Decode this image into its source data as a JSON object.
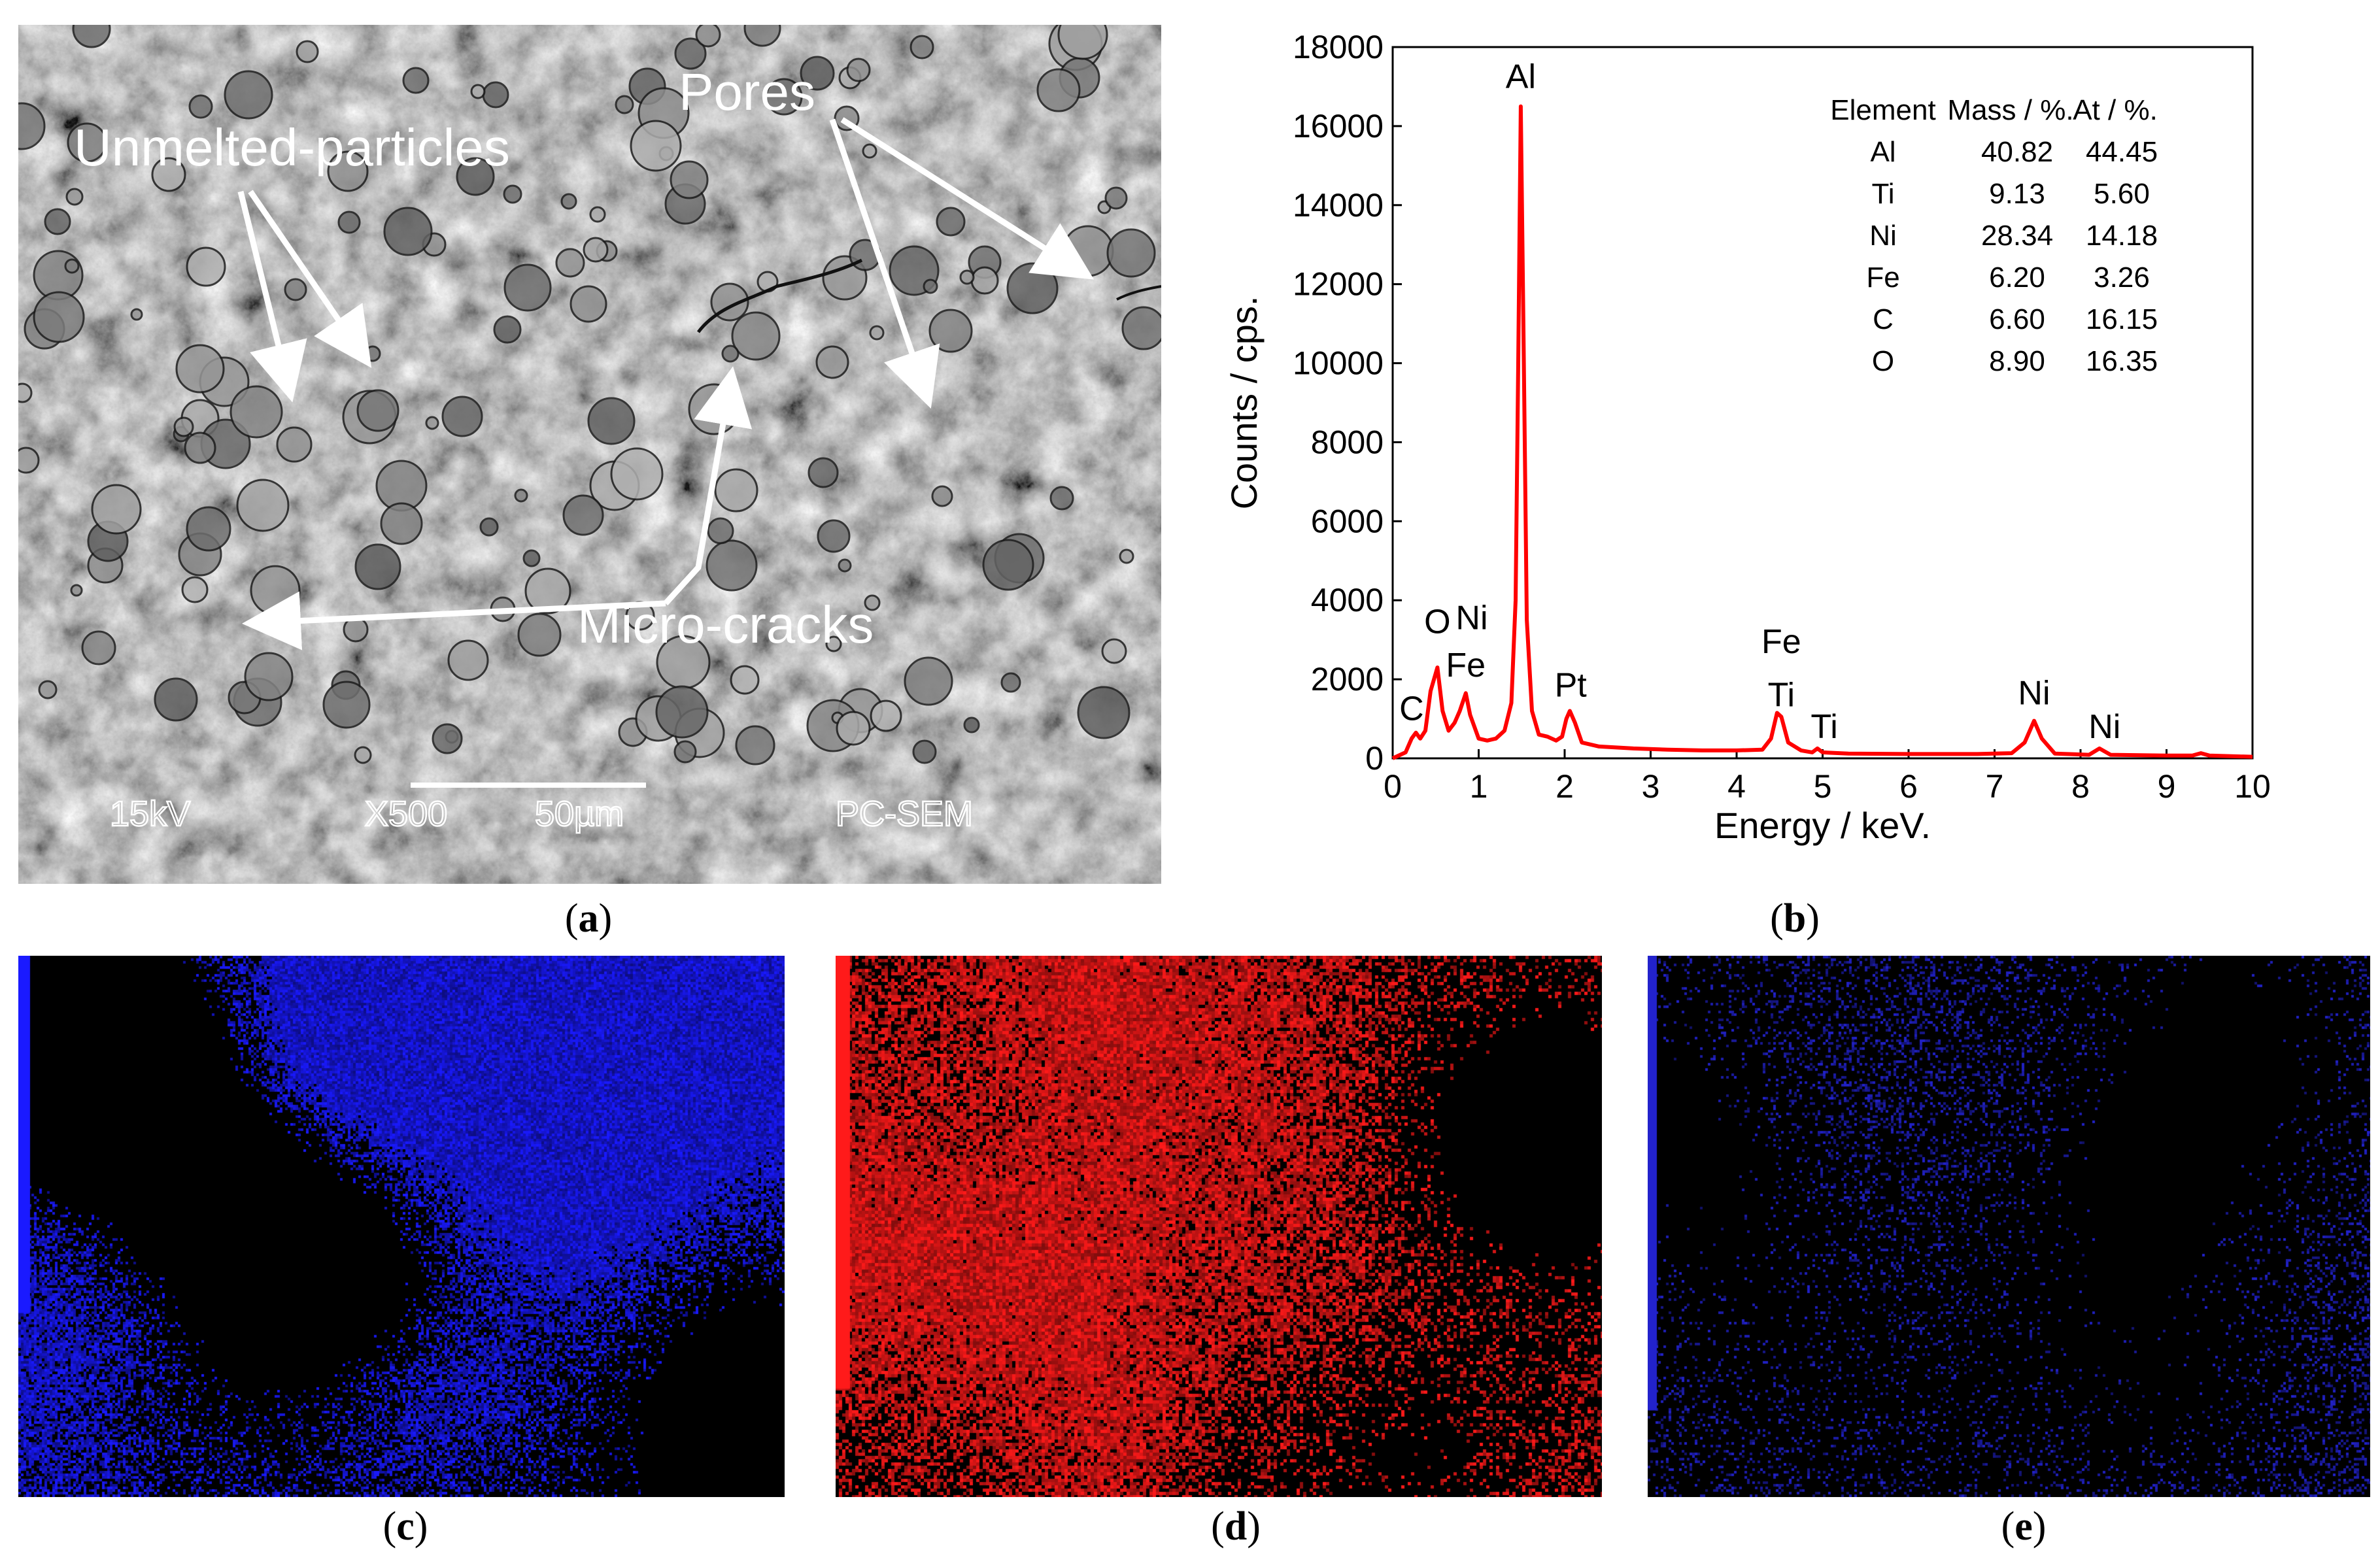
{
  "sem": {
    "annotations": {
      "unmelted": "Unmelted-particles",
      "pores": "Pores",
      "cracks": "Micro-cracks"
    },
    "footer": {
      "voltage": "15kV",
      "mag": "X500",
      "scale": "50µm",
      "instrument": "PC-SEM"
    }
  },
  "labels": {
    "a": "a",
    "b": "b",
    "c": "c",
    "d": "d",
    "e": "e"
  },
  "chart_data": {
    "type": "line",
    "xlabel": "Energy / keV.",
    "ylabel": "Counts / cps.",
    "xlim": [
      0,
      10
    ],
    "ylim": [
      0,
      18000
    ],
    "xticks": [
      0,
      1,
      2,
      3,
      4,
      5,
      6,
      7,
      8,
      9,
      10
    ],
    "yticks": [
      0,
      2000,
      4000,
      6000,
      8000,
      10000,
      12000,
      14000,
      16000,
      18000
    ],
    "grid": false,
    "series_color": "#ff0000",
    "baseline": [
      [
        0,
        0
      ],
      [
        0.15,
        150
      ],
      [
        0.22,
        500
      ],
      [
        0.27,
        650
      ],
      [
        0.32,
        500
      ],
      [
        0.38,
        700
      ],
      [
        0.44,
        1700
      ],
      [
        0.52,
        2300
      ],
      [
        0.58,
        1200
      ],
      [
        0.65,
        700
      ],
      [
        0.72,
        900
      ],
      [
        0.78,
        1200
      ],
      [
        0.85,
        1650
      ],
      [
        0.9,
        1100
      ],
      [
        1.0,
        500
      ],
      [
        1.1,
        450
      ],
      [
        1.2,
        500
      ],
      [
        1.3,
        700
      ],
      [
        1.38,
        1400
      ],
      [
        1.43,
        4000
      ],
      [
        1.46,
        10000
      ],
      [
        1.49,
        16500
      ],
      [
        1.52,
        11000
      ],
      [
        1.56,
        3500
      ],
      [
        1.62,
        1200
      ],
      [
        1.7,
        600
      ],
      [
        1.8,
        550
      ],
      [
        1.9,
        450
      ],
      [
        1.97,
        550
      ],
      [
        2.02,
        1000
      ],
      [
        2.06,
        1200
      ],
      [
        2.12,
        900
      ],
      [
        2.2,
        400
      ],
      [
        2.4,
        300
      ],
      [
        2.8,
        250
      ],
      [
        3.2,
        220
      ],
      [
        3.6,
        200
      ],
      [
        4.0,
        200
      ],
      [
        4.3,
        220
      ],
      [
        4.4,
        500
      ],
      [
        4.47,
        1150
      ],
      [
        4.52,
        1050
      ],
      [
        4.6,
        400
      ],
      [
        4.75,
        200
      ],
      [
        4.88,
        150
      ],
      [
        4.94,
        250
      ],
      [
        5.0,
        150
      ],
      [
        5.3,
        120
      ],
      [
        6.0,
        110
      ],
      [
        6.8,
        110
      ],
      [
        7.2,
        130
      ],
      [
        7.35,
        400
      ],
      [
        7.46,
        950
      ],
      [
        7.55,
        500
      ],
      [
        7.7,
        120
      ],
      [
        8.1,
        90
      ],
      [
        8.22,
        250
      ],
      [
        8.35,
        90
      ],
      [
        9.0,
        70
      ],
      [
        9.3,
        70
      ],
      [
        9.4,
        130
      ],
      [
        9.5,
        70
      ],
      [
        10.0,
        40
      ]
    ],
    "peak_labels": [
      {
        "text": "Al",
        "x": 1.49,
        "y": 16800
      },
      {
        "text": "O",
        "x": 0.52,
        "y": 3000
      },
      {
        "text": "Ni",
        "x": 0.92,
        "y": 3100
      },
      {
        "text": "Fe",
        "x": 0.85,
        "y": 1900
      },
      {
        "text": "C",
        "x": 0.22,
        "y": 800
      },
      {
        "text": "Pt",
        "x": 2.07,
        "y": 1400
      },
      {
        "text": "Fe",
        "x": 4.52,
        "y": 2500
      },
      {
        "text": "Ti",
        "x": 4.52,
        "y": 1150
      },
      {
        "text": "Ti",
        "x": 5.02,
        "y": 350
      },
      {
        "text": "Ni",
        "x": 7.46,
        "y": 1200
      },
      {
        "text": "Ni",
        "x": 8.28,
        "y": 350
      }
    ],
    "table": {
      "headers": [
        "Element",
        "Mass / %.",
        "At / %."
      ],
      "rows": [
        [
          "Al",
          "40.82",
          "44.45"
        ],
        [
          "Ti",
          "9.13",
          "5.60"
        ],
        [
          "Ni",
          "28.34",
          "14.18"
        ],
        [
          "Fe",
          "6.20",
          "3.26"
        ],
        [
          "C",
          "6.60",
          "16.15"
        ],
        [
          "O",
          "8.90",
          "16.35"
        ]
      ]
    }
  },
  "maps": {
    "c_color": "#1a1aff",
    "d_color": "#ff1a1a",
    "e_color": "#2222cc"
  }
}
